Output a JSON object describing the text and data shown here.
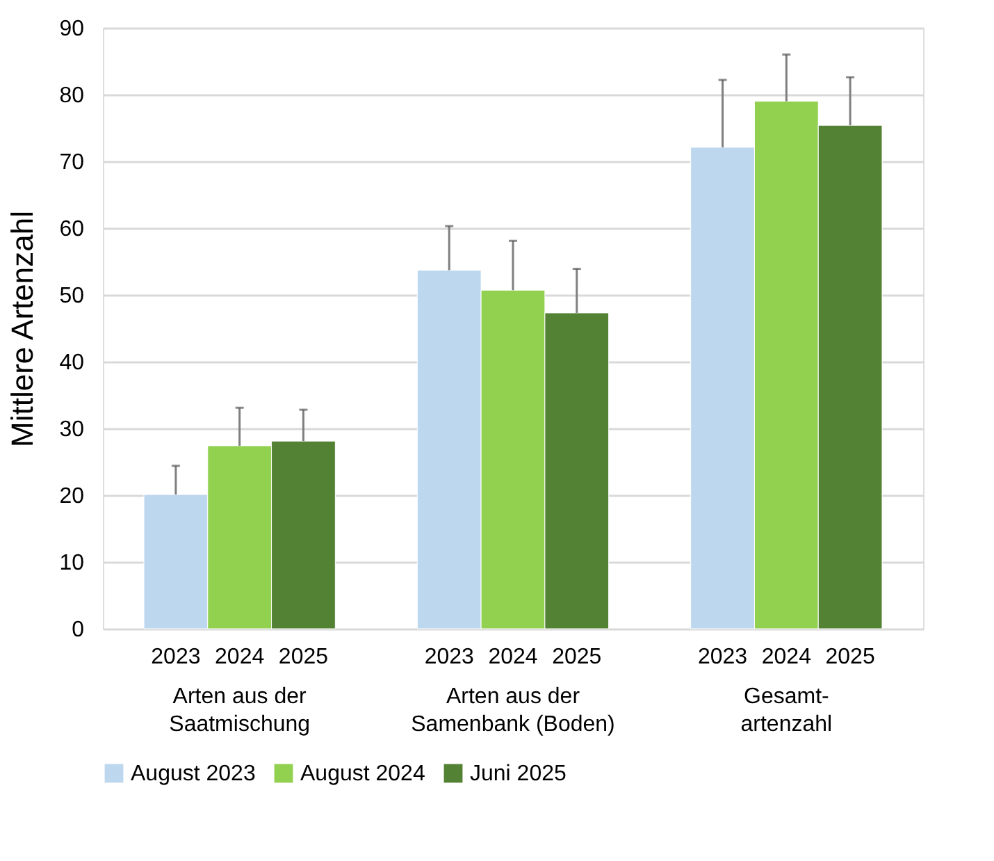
{
  "chart_data": {
    "type": "bar",
    "ylabel": "Mittlere Artenzahl",
    "categories": [
      "Arten aus der\nSaatmischung",
      "Arten aus der\nSamenbank (Boden)",
      "Gesamt-\nartenzahl"
    ],
    "series": [
      {
        "name": "August 2023",
        "color": "#bdd7ee",
        "values": [
          20.1,
          53.7,
          72.1
        ],
        "errors": [
          [
            20.1,
            24.4
          ],
          [
            53.7,
            60.3
          ],
          [
            72.1,
            82.2
          ]
        ]
      },
      {
        "name": "August 2024",
        "color": "#92d050",
        "values": [
          27.4,
          50.7,
          79.0
        ],
        "errors": [
          [
            27.4,
            33.1
          ],
          [
            50.7,
            58.1
          ],
          [
            79.0,
            86.0
          ]
        ]
      },
      {
        "name": "Juni  2025",
        "color": "#548235",
        "values": [
          28.1,
          47.3,
          75.4
        ],
        "errors": [
          [
            28.1,
            32.8
          ],
          [
            47.3,
            53.9
          ],
          [
            75.4,
            82.6
          ]
        ]
      }
    ],
    "annotations": [
      "2023",
      "2024",
      "2025",
      "2023",
      "2024",
      "2025",
      "2023",
      "2024",
      "2025"
    ],
    "ylim": [
      0,
      90
    ],
    "yticks": [
      0,
      10,
      20,
      30,
      40,
      50,
      60,
      70,
      80,
      90
    ],
    "grid": "y",
    "legend": "bottom"
  }
}
